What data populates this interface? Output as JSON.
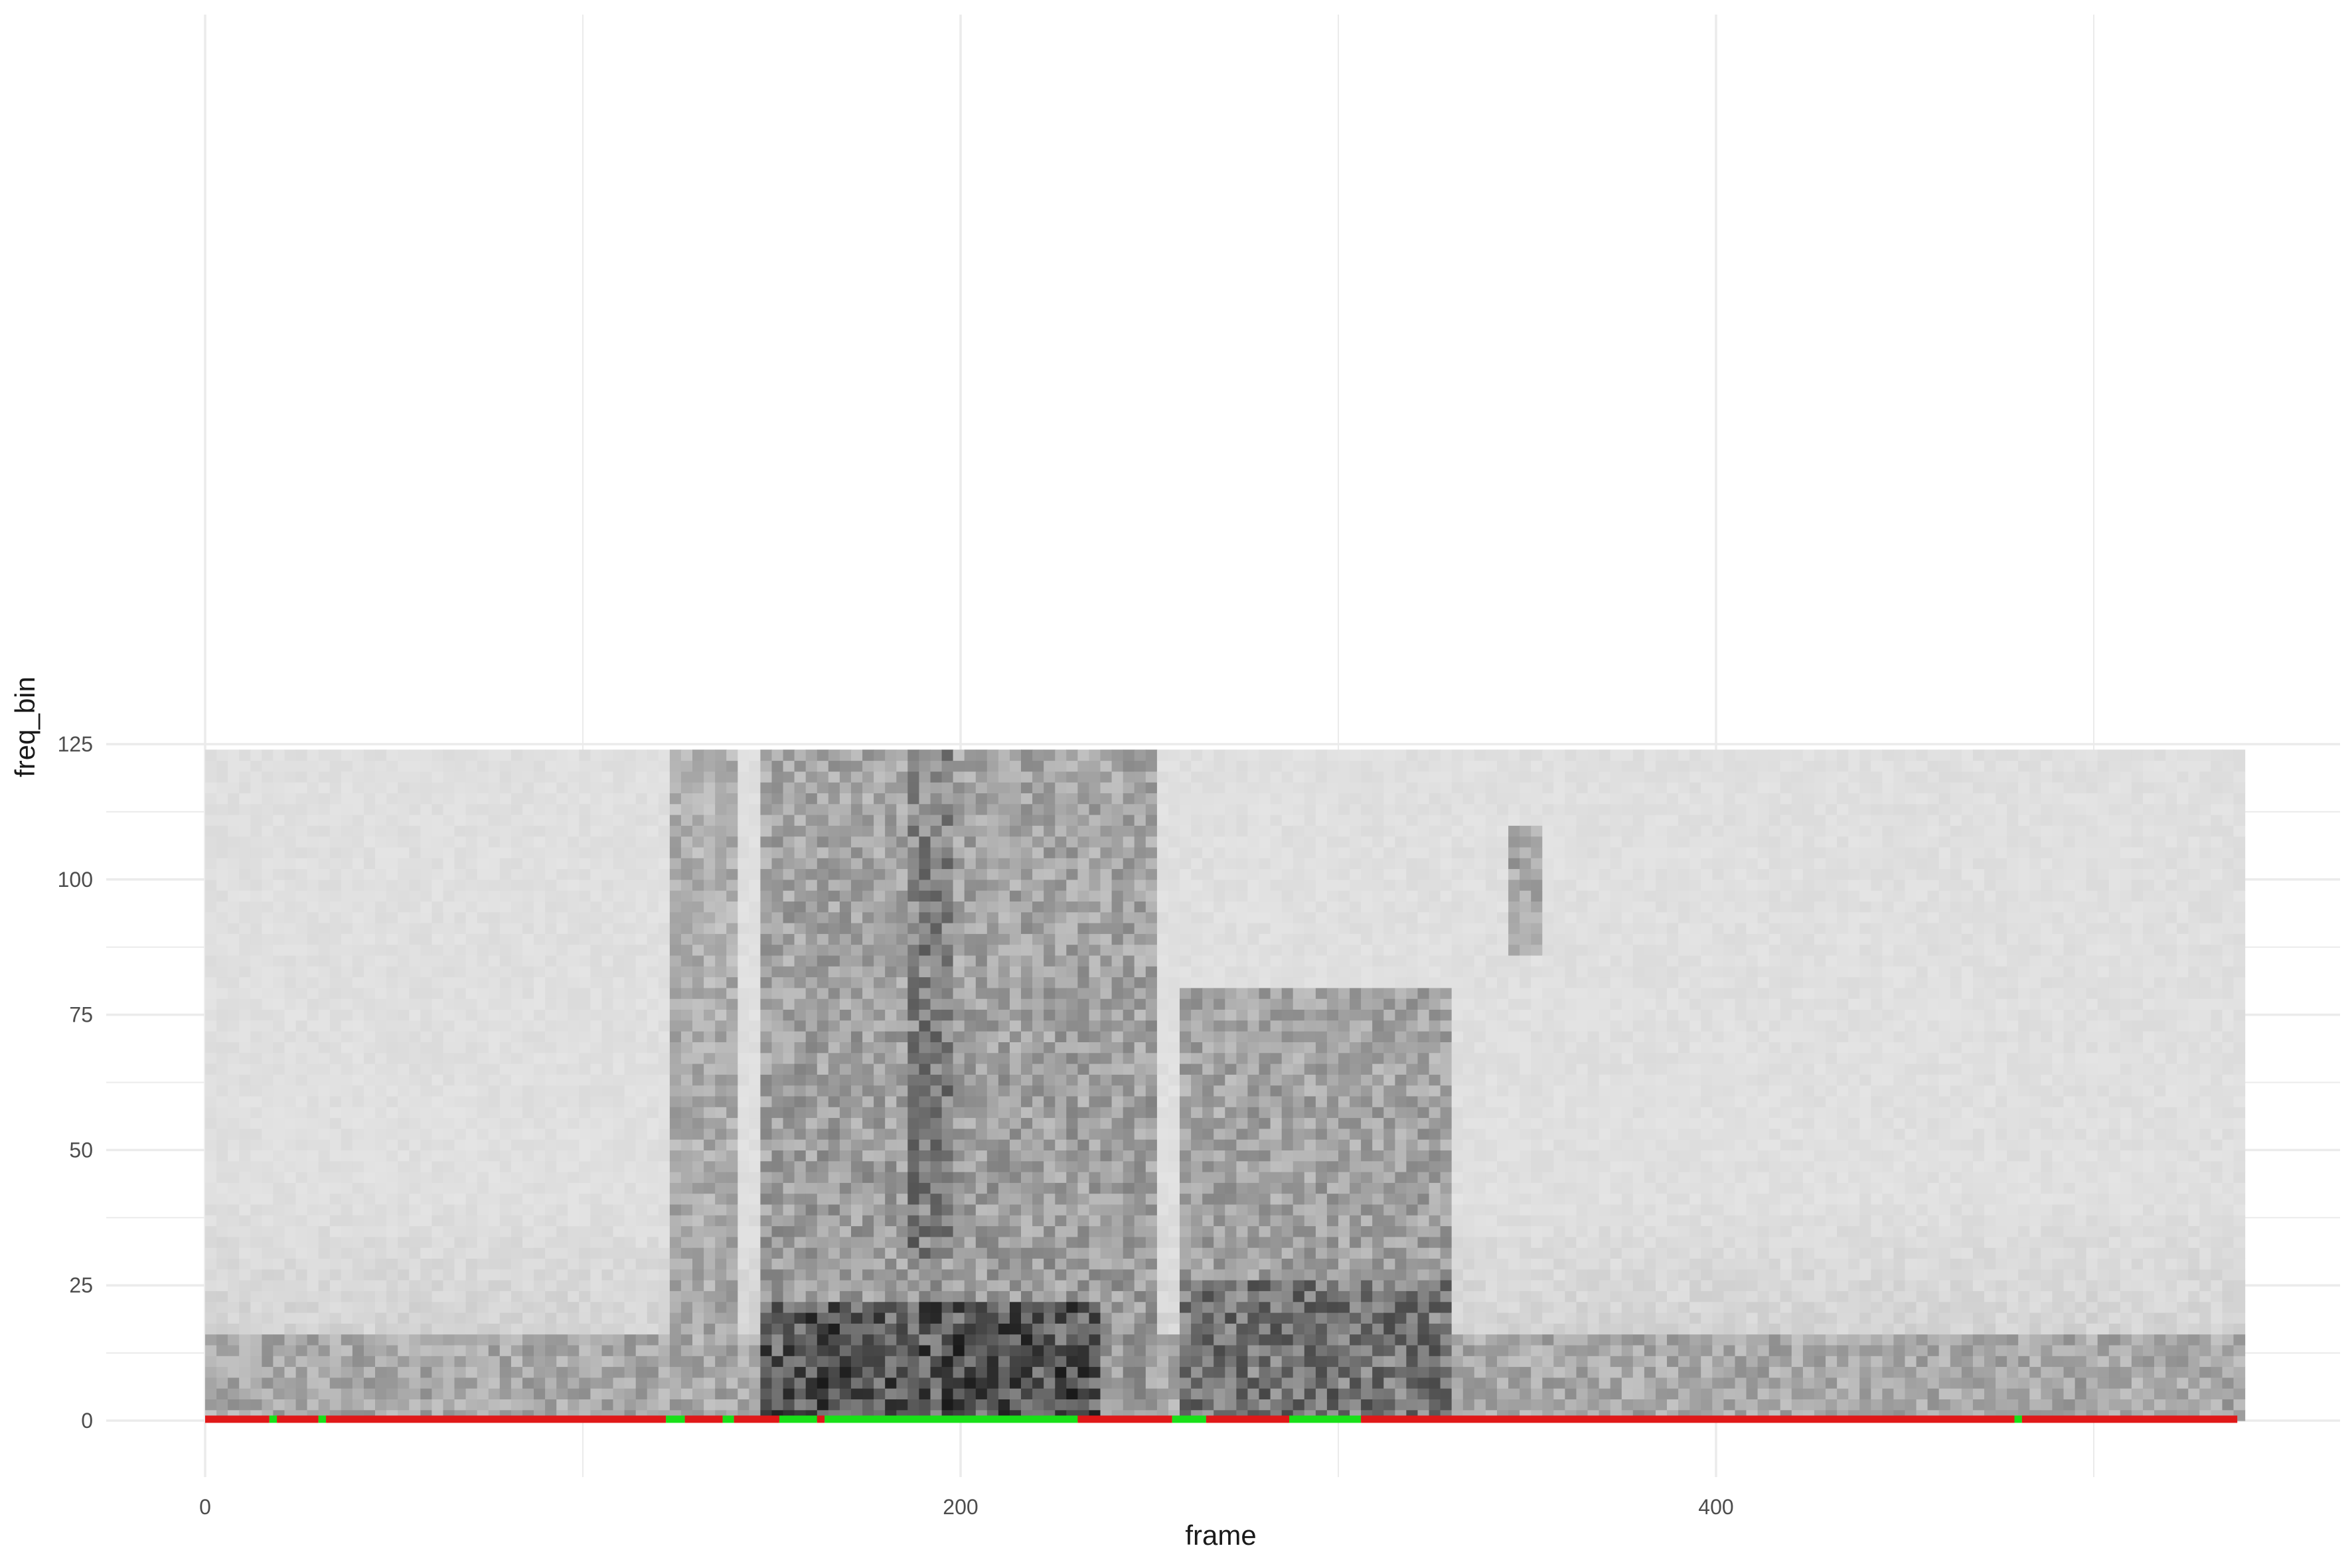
{
  "chart_data": {
    "type": "heatmap",
    "title": "",
    "xlabel": "frame",
    "ylabel": "freq_bin",
    "xlim": [
      0,
      538
    ],
    "ylim": [
      0,
      125
    ],
    "x_ticks": [
      0,
      200,
      400
    ],
    "y_ticks": [
      0,
      25,
      50,
      75,
      100,
      125
    ],
    "grid": true,
    "colors": {
      "low": "#ebebeb",
      "high": "#1a1a1a",
      "voiced": "#18e018",
      "unvoiced": "#e01818",
      "grid": "#ebebeb"
    },
    "heatmap": {
      "frames": 538,
      "freq_bins": 123,
      "frame_step": 3,
      "bin_step": 2,
      "description_of_regions": [
        {
          "frames": [
            122,
            140
          ],
          "bins": [
            0,
            123
          ],
          "intensity": 0.35
        },
        {
          "frames": [
            147,
            252
          ],
          "bins": [
            0,
            123
          ],
          "intensity": 0.42
        },
        {
          "frames": [
            147,
            235
          ],
          "bins": [
            0,
            22
          ],
          "intensity": 0.78
        },
        {
          "frames": [
            185,
            197
          ],
          "bins": [
            30,
            123
          ],
          "intensity": 0.6
        },
        {
          "frames": [
            258,
            330
          ],
          "bins": [
            0,
            80
          ],
          "intensity": 0.4
        },
        {
          "frames": [
            258,
            330
          ],
          "bins": [
            0,
            25
          ],
          "intensity": 0.62
        },
        {
          "frames": [
            0,
            538
          ],
          "bins": [
            0,
            15
          ],
          "intensity": 0.35
        },
        {
          "frames": [
            345,
            352
          ],
          "bins": [
            85,
            110
          ],
          "intensity": 0.4
        }
      ]
    },
    "voicing_track": {
      "y": 1,
      "segments": [
        {
          "start": 0,
          "end": 17,
          "voiced": false
        },
        {
          "start": 17,
          "end": 19,
          "voiced": true
        },
        {
          "start": 19,
          "end": 30,
          "voiced": false
        },
        {
          "start": 30,
          "end": 32,
          "voiced": true
        },
        {
          "start": 32,
          "end": 122,
          "voiced": false
        },
        {
          "start": 122,
          "end": 127,
          "voiced": true
        },
        {
          "start": 127,
          "end": 137,
          "voiced": false
        },
        {
          "start": 137,
          "end": 140,
          "voiced": true
        },
        {
          "start": 140,
          "end": 152,
          "voiced": false
        },
        {
          "start": 152,
          "end": 162,
          "voiced": true
        },
        {
          "start": 162,
          "end": 164,
          "voiced": false
        },
        {
          "start": 164,
          "end": 231,
          "voiced": true
        },
        {
          "start": 231,
          "end": 256,
          "voiced": false
        },
        {
          "start": 256,
          "end": 265,
          "voiced": true
        },
        {
          "start": 265,
          "end": 287,
          "voiced": false
        },
        {
          "start": 287,
          "end": 306,
          "voiced": true
        },
        {
          "start": 306,
          "end": 479,
          "voiced": false
        },
        {
          "start": 479,
          "end": 481,
          "voiced": true
        },
        {
          "start": 481,
          "end": 538,
          "voiced": false
        }
      ]
    }
  }
}
